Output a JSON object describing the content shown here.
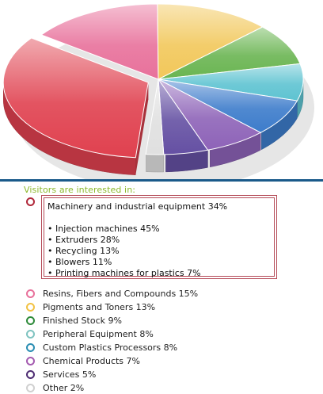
{
  "chart_data": {
    "type": "pie",
    "title": "",
    "series": [
      {
        "name": "",
        "labels": [
          "Machinery and industrial equipment",
          "Resins, Fibers and Compounds",
          "Pigments and Toners",
          "Finished Stock",
          "Peripheral Equipment",
          "Custom Plastics Processors",
          "Chemical Products",
          "Services",
          "Other"
        ],
        "values": [
          34,
          15,
          13,
          9,
          8,
          8,
          7,
          5,
          2
        ],
        "colors": [
          "#e0414f",
          "#e8719b",
          "#f2c75a",
          "#6ab552",
          "#5ec3d1",
          "#3d7ccb",
          "#8e63b8",
          "#6550a3",
          "#e0e0e0"
        ]
      }
    ],
    "legend": "below",
    "legend_heading": "Visitors are interested in:",
    "detail": {
      "title": "Machinery and industrial equipment 34%",
      "items": [
        "• Injection machines 45%",
        "• Extruders 28%",
        "• Recycling 13%",
        "• Blowers 11%",
        "• Printing machines for plastics 7%"
      ]
    }
  },
  "legend": {
    "heading": "Visitors are interested in:",
    "entries": [
      {
        "label": "",
        "color": "#b0283a"
      },
      {
        "label": "Resins, Fibers and Compounds 15%",
        "color": "#e8719b"
      },
      {
        "label": "Pigments and Toners 13%",
        "color": "#f2c244"
      },
      {
        "label": "Finished Stock 9%",
        "color": "#2e8b3a"
      },
      {
        "label": "Peripheral Equipment 8%",
        "color": "#7fc3c0"
      },
      {
        "label": "Custom Plastics Processors 8%",
        "color": "#2b8eb3"
      },
      {
        "label": "Chemical Products 7%",
        "color": "#a45bb0"
      },
      {
        "label": "Services 5%",
        "color": "#4e2d73"
      },
      {
        "label": "Other 2%",
        "color": "#d0d0d0"
      }
    ]
  }
}
